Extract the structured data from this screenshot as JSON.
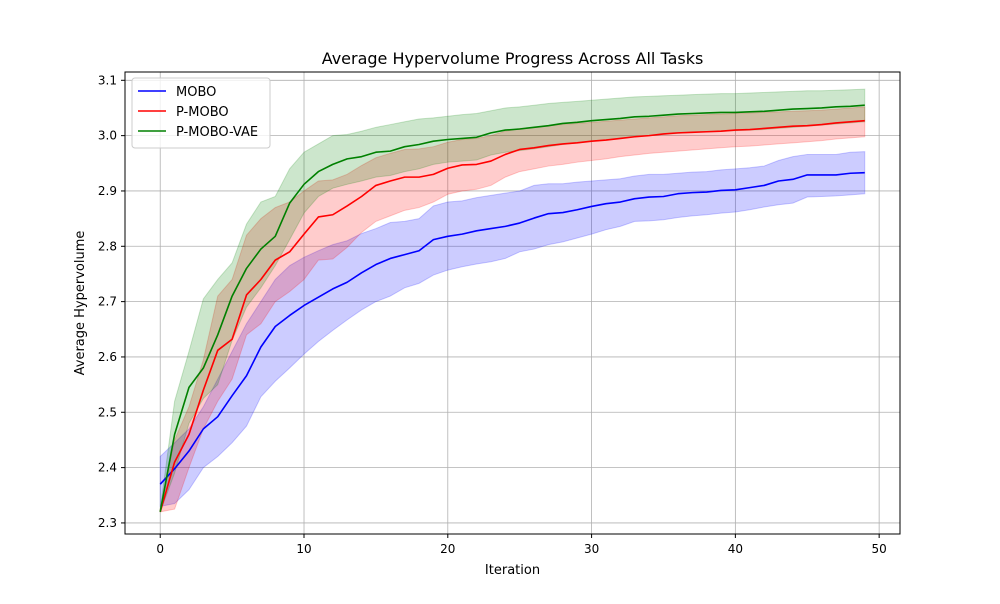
{
  "chart_data": {
    "type": "line",
    "title": "Average Hypervolume Progress Across All Tasks",
    "xlabel": "Iteration",
    "ylabel": "Average Hypervolume",
    "xlim": [
      -2.45,
      51.45
    ],
    "ylim": [
      2.28,
      3.115
    ],
    "xticks": [
      0,
      10,
      20,
      30,
      40,
      50
    ],
    "yticks": [
      2.3,
      2.4,
      2.5,
      2.6,
      2.7,
      2.8,
      2.9,
      3.0,
      3.1
    ],
    "xtick_labels": [
      "0",
      "10",
      "20",
      "30",
      "40",
      "50"
    ],
    "ytick_labels": [
      "2.3",
      "2.4",
      "2.5",
      "2.6",
      "2.7",
      "2.8",
      "2.9",
      "3.0",
      "3.1"
    ],
    "grid": true,
    "legend_position": "top-left",
    "x": [
      0,
      1,
      2,
      3,
      4,
      5,
      6,
      7,
      8,
      9,
      10,
      11,
      12,
      13,
      14,
      15,
      16,
      17,
      18,
      19,
      20,
      21,
      22,
      23,
      24,
      25,
      26,
      27,
      28,
      29,
      30,
      31,
      32,
      33,
      34,
      35,
      36,
      37,
      38,
      39,
      40,
      41,
      42,
      43,
      44,
      45,
      46,
      47,
      48,
      49
    ],
    "series": [
      {
        "name": "MOBO",
        "color": "#0000ff",
        "band_color": "#0000ff",
        "values": [
          2.37,
          2.398,
          2.43,
          2.47,
          2.492,
          2.53,
          2.566,
          2.618,
          2.655,
          2.675,
          2.693,
          2.708,
          2.723,
          2.735,
          2.752,
          2.767,
          2.778,
          2.785,
          2.792,
          2.812,
          2.818,
          2.822,
          2.828,
          2.832,
          2.836,
          2.842,
          2.851,
          2.859,
          2.861,
          2.866,
          2.872,
          2.877,
          2.88,
          2.886,
          2.889,
          2.89,
          2.895,
          2.897,
          2.898,
          2.901,
          2.902,
          2.906,
          2.91,
          2.918,
          2.921,
          2.929,
          2.929,
          2.929,
          2.932,
          2.933
        ],
        "upper": [
          2.42,
          2.445,
          2.47,
          2.51,
          2.56,
          2.61,
          2.66,
          2.7,
          2.74,
          2.765,
          2.78,
          2.792,
          2.803,
          2.81,
          2.823,
          2.832,
          2.843,
          2.845,
          2.85,
          2.873,
          2.88,
          2.882,
          2.888,
          2.892,
          2.896,
          2.9,
          2.91,
          2.913,
          2.913,
          2.916,
          2.918,
          2.92,
          2.922,
          2.927,
          2.93,
          2.93,
          2.932,
          2.934,
          2.935,
          2.938,
          2.94,
          2.942,
          2.945,
          2.955,
          2.962,
          2.966,
          2.966,
          2.966,
          2.97,
          2.971
        ],
        "lower": [
          2.33,
          2.335,
          2.36,
          2.4,
          2.42,
          2.445,
          2.475,
          2.528,
          2.556,
          2.58,
          2.605,
          2.628,
          2.648,
          2.667,
          2.685,
          2.7,
          2.71,
          2.725,
          2.733,
          2.748,
          2.757,
          2.763,
          2.768,
          2.772,
          2.778,
          2.79,
          2.795,
          2.803,
          2.808,
          2.815,
          2.822,
          2.83,
          2.836,
          2.845,
          2.846,
          2.848,
          2.852,
          2.855,
          2.857,
          2.86,
          2.862,
          2.866,
          2.871,
          2.875,
          2.878,
          2.889,
          2.89,
          2.891,
          2.893,
          2.895
        ]
      },
      {
        "name": "P-MOBO",
        "color": "#ff0000",
        "band_color": "#ff0000",
        "values": [
          2.32,
          2.41,
          2.46,
          2.54,
          2.612,
          2.632,
          2.712,
          2.74,
          2.775,
          2.79,
          2.822,
          2.853,
          2.857,
          2.873,
          2.89,
          2.91,
          2.918,
          2.925,
          2.925,
          2.93,
          2.941,
          2.947,
          2.948,
          2.954,
          2.966,
          2.975,
          2.978,
          2.982,
          2.985,
          2.987,
          2.99,
          2.992,
          2.995,
          2.998,
          3.0,
          3.003,
          3.005,
          3.006,
          3.007,
          3.008,
          3.01,
          3.011,
          3.013,
          3.015,
          3.017,
          3.018,
          3.02,
          3.023,
          3.025,
          3.027
        ],
        "upper": [
          2.325,
          2.45,
          2.51,
          2.595,
          2.71,
          2.74,
          2.82,
          2.85,
          2.87,
          2.88,
          2.9,
          2.918,
          2.92,
          2.93,
          2.946,
          2.96,
          2.968,
          2.975,
          2.976,
          2.98,
          2.988,
          2.993,
          2.995,
          3.0,
          3.008,
          3.013,
          3.015,
          3.018,
          3.02,
          3.022,
          3.024,
          3.026,
          3.028,
          3.03,
          3.032,
          3.034,
          3.036,
          3.037,
          3.038,
          3.039,
          3.04,
          3.041,
          3.042,
          3.043,
          3.044,
          3.045,
          3.046,
          3.048,
          3.05,
          3.052
        ],
        "lower": [
          2.32,
          2.325,
          2.4,
          2.47,
          2.52,
          2.56,
          2.64,
          2.66,
          2.7,
          2.718,
          2.74,
          2.775,
          2.777,
          2.798,
          2.825,
          2.845,
          2.855,
          2.865,
          2.87,
          2.88,
          2.894,
          2.9,
          2.903,
          2.91,
          2.925,
          2.935,
          2.94,
          2.945,
          2.948,
          2.952,
          2.955,
          2.958,
          2.962,
          2.965,
          2.968,
          2.97,
          2.972,
          2.974,
          2.976,
          2.978,
          2.98,
          2.981,
          2.983,
          2.985,
          2.987,
          2.989,
          2.991,
          2.994,
          2.996,
          2.998
        ]
      },
      {
        "name": "P-MOBO-VAE",
        "color": "#008000",
        "band_color": "#008000",
        "values": [
          2.32,
          2.46,
          2.545,
          2.58,
          2.64,
          2.71,
          2.76,
          2.795,
          2.818,
          2.878,
          2.912,
          2.935,
          2.948,
          2.958,
          2.962,
          2.97,
          2.972,
          2.98,
          2.984,
          2.99,
          2.993,
          2.995,
          2.997,
          3.005,
          3.01,
          3.012,
          3.015,
          3.018,
          3.022,
          3.024,
          3.027,
          3.029,
          3.031,
          3.034,
          3.035,
          3.037,
          3.039,
          3.04,
          3.041,
          3.042,
          3.042,
          3.043,
          3.044,
          3.046,
          3.048,
          3.049,
          3.05,
          3.052,
          3.053,
          3.055
        ],
        "upper": [
          2.325,
          2.52,
          2.61,
          2.705,
          2.74,
          2.77,
          2.84,
          2.88,
          2.89,
          2.94,
          2.97,
          2.985,
          3.0,
          3.002,
          3.008,
          3.015,
          3.02,
          3.025,
          3.03,
          3.032,
          3.035,
          3.038,
          3.04,
          3.045,
          3.05,
          3.052,
          3.055,
          3.058,
          3.06,
          3.062,
          3.064,
          3.066,
          3.068,
          3.07,
          3.071,
          3.072,
          3.073,
          3.074,
          3.075,
          3.076,
          3.076,
          3.077,
          3.078,
          3.079,
          3.08,
          3.081,
          3.081,
          3.082,
          3.083,
          3.084
        ],
        "lower": [
          2.32,
          2.39,
          2.48,
          2.525,
          2.55,
          2.63,
          2.69,
          2.725,
          2.765,
          2.812,
          2.86,
          2.89,
          2.905,
          2.912,
          2.918,
          2.925,
          2.928,
          2.935,
          2.94,
          2.948,
          2.952,
          2.954,
          2.956,
          2.965,
          2.97,
          2.973,
          2.976,
          2.98,
          2.984,
          2.987,
          2.99,
          2.992,
          2.995,
          2.998,
          3.0,
          3.002,
          3.004,
          3.006,
          3.007,
          3.008,
          3.009,
          3.01,
          3.011,
          3.013,
          3.015,
          3.017,
          3.019,
          3.021,
          3.023,
          3.025
        ]
      }
    ]
  }
}
